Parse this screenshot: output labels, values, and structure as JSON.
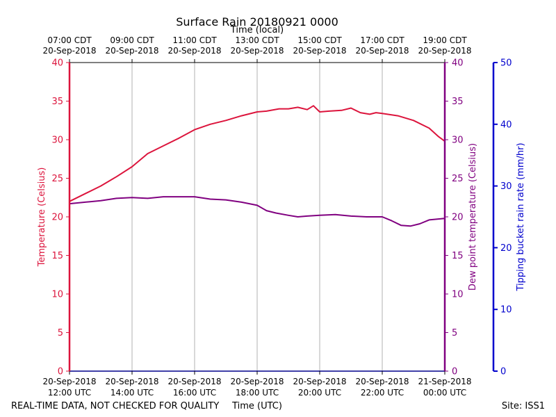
{
  "chart_data": {
    "type": "line",
    "title": "Surface Rain 20180921 0000",
    "top_axis_title": "Time (local)",
    "xlabel": "Time (UTC)",
    "ylabel_left": "Temperature (Celsius)",
    "ylabel_right_dew": "Dew point temperature (Celsius)",
    "ylabel_right_rain": "Tipping bucket rain rate (mm/hr)",
    "footer_left": "REAL-TIME DATA, NOT CHECKED FOR QUALITY",
    "footer_right": "Site: ISS1",
    "x_hours_range": [
      12,
      24
    ],
    "ylim_temp": [
      0,
      40
    ],
    "ylim_dew": [
      0,
      40
    ],
    "ylim_rain": [
      0,
      50
    ],
    "y_ticks_temp": [
      "0",
      "5",
      "10",
      "15",
      "20",
      "25",
      "30",
      "35",
      "40"
    ],
    "y_ticks_dew": [
      "0",
      "5",
      "10",
      "15",
      "20",
      "25",
      "30",
      "35",
      "40"
    ],
    "y_ticks_rain": [
      "0",
      "10",
      "20",
      "30",
      "40",
      "50"
    ],
    "x_ticks_utc": [
      {
        "hour": 12,
        "date": "20-Sep-2018",
        "time": "12:00 UTC"
      },
      {
        "hour": 14,
        "date": "20-Sep-2018",
        "time": "14:00 UTC"
      },
      {
        "hour": 16,
        "date": "20-Sep-2018",
        "time": "16:00 UTC"
      },
      {
        "hour": 18,
        "date": "20-Sep-2018",
        "time": "18:00 UTC"
      },
      {
        "hour": 20,
        "date": "20-Sep-2018",
        "time": "20:00 UTC"
      },
      {
        "hour": 22,
        "date": "20-Sep-2018",
        "time": "22:00 UTC"
      },
      {
        "hour": 24,
        "date": "21-Sep-2018",
        "time": "00:00 UTC"
      }
    ],
    "x_ticks_local": [
      {
        "hour": 12,
        "time": "07:00 CDT",
        "date": "20-Sep-2018"
      },
      {
        "hour": 14,
        "time": "09:00 CDT",
        "date": "20-Sep-2018"
      },
      {
        "hour": 16,
        "time": "11:00 CDT",
        "date": "20-Sep-2018"
      },
      {
        "hour": 18,
        "time": "13:00 CDT",
        "date": "20-Sep-2018"
      },
      {
        "hour": 20,
        "time": "15:00 CDT",
        "date": "20-Sep-2018"
      },
      {
        "hour": 22,
        "time": "17:00 CDT",
        "date": "20-Sep-2018"
      },
      {
        "hour": 24,
        "time": "19:00 CDT",
        "date": "20-Sep-2018"
      }
    ],
    "colors": {
      "temperature": "#dc143c",
      "dewpoint": "#800080",
      "rain": "#0000cd",
      "grid": "#b0b0b0",
      "axis": "#000000"
    },
    "series": [
      {
        "name": "Temperature (Celsius)",
        "x": [
          12.0,
          12.5,
          13.0,
          13.5,
          14.0,
          14.5,
          15.0,
          15.5,
          16.0,
          16.5,
          17.0,
          17.5,
          18.0,
          18.3,
          18.7,
          19.0,
          19.3,
          19.6,
          19.8,
          20.0,
          20.3,
          20.7,
          21.0,
          21.3,
          21.6,
          21.8,
          22.0,
          22.5,
          23.0,
          23.5,
          23.8,
          24.0
        ],
        "values": [
          22.0,
          23.0,
          24.0,
          25.2,
          26.5,
          28.2,
          29.2,
          30.2,
          31.3,
          32.0,
          32.5,
          33.1,
          33.6,
          33.7,
          34.0,
          34.0,
          34.2,
          33.9,
          34.4,
          33.6,
          33.7,
          33.8,
          34.1,
          33.5,
          33.3,
          33.5,
          33.4,
          33.1,
          32.5,
          31.5,
          30.4,
          29.8
        ]
      },
      {
        "name": "Dew point temperature (Celsius)",
        "x": [
          12.0,
          12.5,
          13.0,
          13.5,
          14.0,
          14.5,
          15.0,
          15.5,
          16.0,
          16.5,
          17.0,
          17.5,
          18.0,
          18.3,
          18.6,
          19.0,
          19.3,
          19.6,
          20.0,
          20.5,
          21.0,
          21.5,
          22.0,
          22.3,
          22.6,
          22.9,
          23.2,
          23.5,
          24.0
        ],
        "values": [
          21.7,
          21.9,
          22.1,
          22.4,
          22.5,
          22.4,
          22.6,
          22.6,
          22.6,
          22.3,
          22.2,
          21.9,
          21.5,
          20.8,
          20.5,
          20.2,
          20.0,
          20.1,
          20.2,
          20.3,
          20.1,
          20.0,
          20.0,
          19.5,
          18.9,
          18.8,
          19.1,
          19.6,
          19.8
        ]
      }
    ]
  }
}
